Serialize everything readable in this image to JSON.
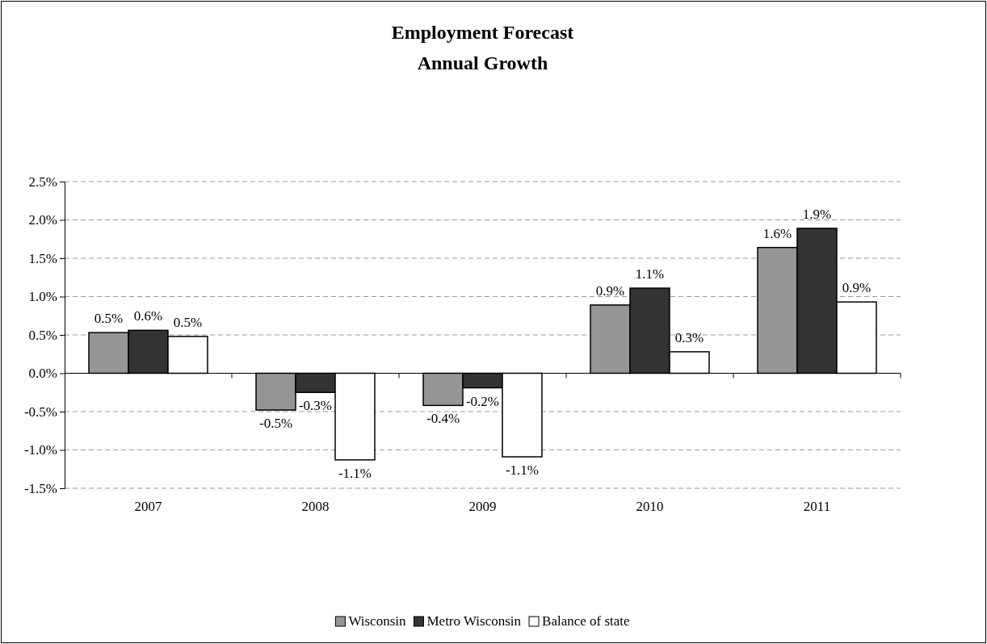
{
  "chart_data": {
    "type": "bar",
    "title": "Employment Forecast",
    "subtitle": "Annual Growth",
    "categories": [
      "2007",
      "2008",
      "2009",
      "2010",
      "2011"
    ],
    "series": [
      {
        "name": "Wisconsin",
        "color": "#969696",
        "values": [
          0.53,
          -0.48,
          -0.42,
          0.89,
          1.64
        ],
        "value_labels": [
          "0.5%",
          "-0.5%",
          "-0.4%",
          "0.9%",
          "1.6%"
        ]
      },
      {
        "name": "Metro Wisconsin",
        "color": "#333333",
        "values": [
          0.56,
          -0.25,
          -0.19,
          1.11,
          1.89
        ],
        "value_labels": [
          "0.6%",
          "-0.3%",
          "-0.2%",
          "1.1%",
          "1.9%"
        ]
      },
      {
        "name": "Balance of state",
        "color": "#ffffff",
        "values": [
          0.48,
          -1.13,
          -1.09,
          0.28,
          0.93
        ],
        "value_labels": [
          "0.5%",
          "-1.1%",
          "-1.1%",
          "0.3%",
          "0.9%"
        ]
      }
    ],
    "ylim": [
      -1.5,
      2.5
    ],
    "yticks": [
      {
        "value": -1.5,
        "label": "-1.5%"
      },
      {
        "value": -1.0,
        "label": "-1.0%"
      },
      {
        "value": -0.5,
        "label": "-0.5%"
      },
      {
        "value": 0,
        "label": "0.0%"
      },
      {
        "value": 0.5,
        "label": "0.5%"
      },
      {
        "value": 1.0,
        "label": "1.0%"
      },
      {
        "value": 1.5,
        "label": "1.5%"
      },
      {
        "value": 2.0,
        "label": "2.0%"
      },
      {
        "value": 2.5,
        "label": "2.5%"
      }
    ],
    "grid": "y",
    "legend": "bottom"
  }
}
